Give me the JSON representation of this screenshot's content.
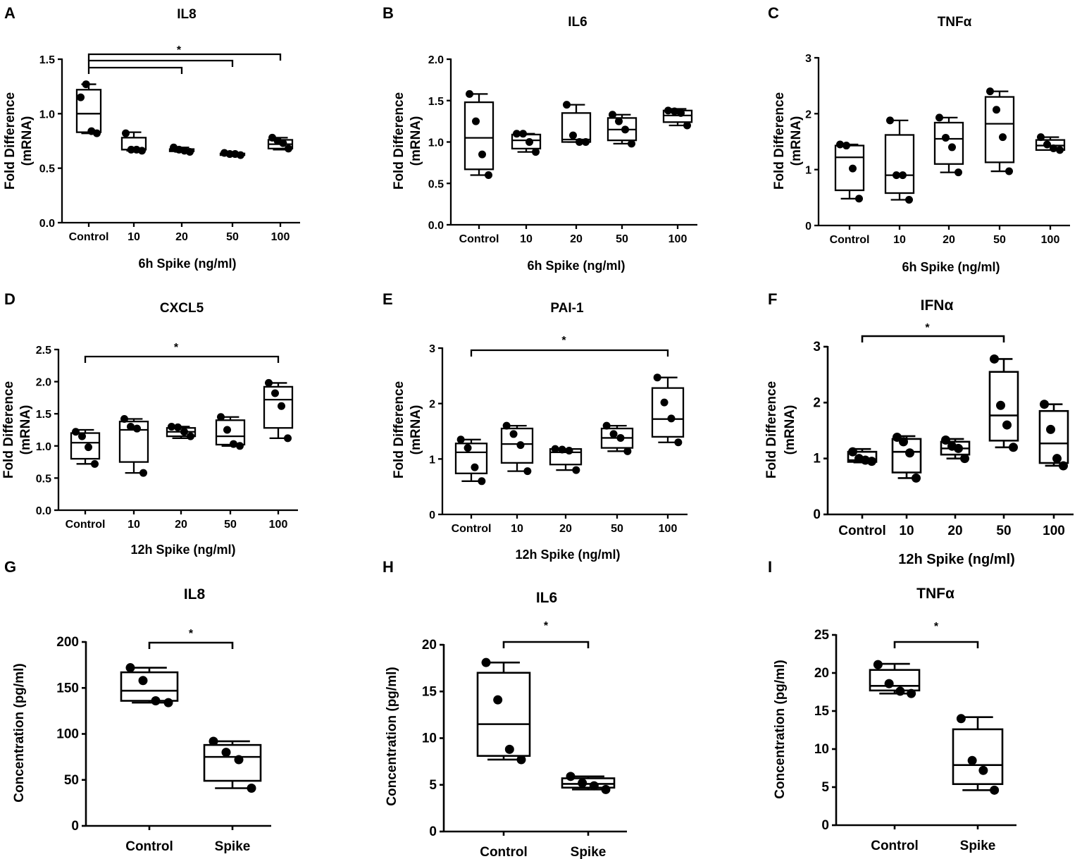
{
  "figure": {
    "colors": {
      "stroke": "#000000",
      "background": "#ffffff"
    }
  },
  "chart_data": [
    {
      "id": "A",
      "panel_label": "A",
      "type": "box",
      "title": "IL8",
      "xlabel": "6h Spike (ng/ml)",
      "ylabel": [
        "Fold Difference",
        "(mRNA)"
      ],
      "categories": [
        "Control",
        "10",
        "20",
        "50",
        "100"
      ],
      "ylim": [
        0,
        1.5
      ],
      "yticks": [
        0,
        0.5,
        1.0,
        1.5
      ],
      "ytick_labels": [
        "0.0",
        "0.5",
        "1.0",
        "1.5"
      ],
      "boxes": [
        {
          "min": 0.82,
          "q1": 0.83,
          "median": 1.0,
          "q3": 1.22,
          "max": 1.27
        },
        {
          "min": 0.66,
          "q1": 0.67,
          "median": 0.67,
          "q3": 0.78,
          "max": 0.83
        },
        {
          "min": 0.65,
          "q1": 0.655,
          "median": 0.665,
          "q3": 0.675,
          "max": 0.69
        },
        {
          "min": 0.62,
          "q1": 0.62,
          "median": 0.63,
          "q3": 0.635,
          "max": 0.64
        },
        {
          "min": 0.67,
          "q1": 0.68,
          "median": 0.72,
          "q3": 0.76,
          "max": 0.78
        }
      ],
      "points": [
        [
          1.15,
          1.27,
          0.84,
          0.82
        ],
        [
          0.82,
          0.67,
          0.67,
          0.66
        ],
        [
          0.69,
          0.67,
          0.66,
          0.65
        ],
        [
          0.64,
          0.63,
          0.63,
          0.62
        ],
        [
          0.78,
          0.75,
          0.73,
          0.68
        ]
      ],
      "significance": [
        {
          "from": 0,
          "to": 2,
          "label": ""
        },
        {
          "from": 0,
          "to": 3,
          "label": ""
        },
        {
          "from": 0,
          "to": 4,
          "label": "*"
        }
      ]
    },
    {
      "id": "B",
      "panel_label": "B",
      "type": "box",
      "title": "IL6",
      "xlabel": "6h Spike (ng/ml)",
      "ylabel": [
        "Fold Difference",
        "(mRNA)"
      ],
      "categories": [
        "Control",
        "10",
        "20",
        "50",
        "100"
      ],
      "ylim": [
        0,
        2.0
      ],
      "yticks": [
        0,
        0.5,
        1.0,
        1.5,
        2.0
      ],
      "ytick_labels": [
        "0.0",
        "0.5",
        "1.0",
        "1.5",
        "2.0"
      ],
      "boxes": [
        {
          "min": 0.6,
          "q1": 0.67,
          "median": 1.05,
          "q3": 1.48,
          "max": 1.58
        },
        {
          "min": 0.88,
          "q1": 0.92,
          "median": 1.02,
          "q3": 1.09,
          "max": 1.1
        },
        {
          "min": 1.0,
          "q1": 1.0,
          "median": 1.03,
          "q3": 1.35,
          "max": 1.45
        },
        {
          "min": 0.98,
          "q1": 1.02,
          "median": 1.15,
          "q3": 1.29,
          "max": 1.33
        },
        {
          "min": 1.2,
          "q1": 1.24,
          "median": 1.32,
          "q3": 1.38,
          "max": 1.4
        }
      ],
      "points": [
        [
          1.58,
          1.25,
          0.85,
          0.6
        ],
        [
          1.1,
          1.1,
          1.0,
          0.88
        ],
        [
          1.45,
          1.08,
          1.0,
          1.0
        ],
        [
          1.33,
          1.25,
          1.15,
          0.98
        ],
        [
          1.38,
          1.37,
          1.35,
          1.2
        ]
      ],
      "significance": []
    },
    {
      "id": "C",
      "panel_label": "C",
      "type": "box",
      "title": "TNFα",
      "xlabel": "6h Spike (ng/ml)",
      "ylabel": [
        "Fold Difference",
        "(mRNA)"
      ],
      "categories": [
        "Control",
        "10",
        "20",
        "50",
        "100"
      ],
      "ylim": [
        0,
        3
      ],
      "yticks": [
        0,
        1,
        2,
        3
      ],
      "ytick_labels": [
        "0",
        "1",
        "2",
        "3"
      ],
      "boxes": [
        {
          "min": 0.48,
          "q1": 0.63,
          "median": 1.22,
          "q3": 1.43,
          "max": 1.45
        },
        {
          "min": 0.46,
          "q1": 0.58,
          "median": 0.9,
          "q3": 1.62,
          "max": 1.88
        },
        {
          "min": 0.95,
          "q1": 1.1,
          "median": 1.55,
          "q3": 1.84,
          "max": 1.93
        },
        {
          "min": 0.97,
          "q1": 1.13,
          "median": 1.82,
          "q3": 2.3,
          "max": 2.4
        },
        {
          "min": 1.35,
          "q1": 1.35,
          "median": 1.43,
          "q3": 1.53,
          "max": 1.58
        }
      ],
      "points": [
        [
          1.45,
          1.43,
          1.02,
          0.48
        ],
        [
          1.88,
          0.9,
          0.9,
          0.46
        ],
        [
          1.93,
          1.57,
          1.4,
          0.95
        ],
        [
          2.4,
          2.07,
          1.58,
          0.97
        ],
        [
          1.58,
          1.45,
          1.38,
          1.35
        ]
      ],
      "significance": []
    },
    {
      "id": "D",
      "panel_label": "D",
      "type": "box",
      "title": "CXCL5",
      "xlabel": "12h Spike (ng/ml)",
      "ylabel": [
        "Fold Difference",
        "(mRNA)"
      ],
      "categories": [
        "Control",
        "10",
        "20",
        "50",
        "100"
      ],
      "ylim": [
        0,
        2.5
      ],
      "yticks": [
        0,
        0.5,
        1.0,
        1.5,
        2.0,
        2.5
      ],
      "ytick_labels": [
        "0.0",
        "0.5",
        "1.0",
        "1.5",
        "2.0",
        "2.5"
      ],
      "boxes": [
        {
          "min": 0.72,
          "q1": 0.8,
          "median": 1.05,
          "q3": 1.2,
          "max": 1.25
        },
        {
          "min": 0.58,
          "q1": 0.75,
          "median": 1.25,
          "q3": 1.38,
          "max": 1.42
        },
        {
          "min": 1.12,
          "q1": 1.15,
          "median": 1.22,
          "q3": 1.28,
          "max": 1.3
        },
        {
          "min": 1.0,
          "q1": 1.02,
          "median": 1.15,
          "q3": 1.4,
          "max": 1.45
        },
        {
          "min": 1.12,
          "q1": 1.28,
          "median": 1.72,
          "q3": 1.92,
          "max": 1.98
        }
      ],
      "points": [
        [
          1.22,
          1.15,
          0.98,
          0.72
        ],
        [
          1.42,
          1.3,
          1.27,
          0.58
        ],
        [
          1.3,
          1.29,
          1.22,
          1.15
        ],
        [
          1.45,
          1.25,
          1.03,
          1.0
        ],
        [
          1.98,
          1.82,
          1.62,
          1.12
        ]
      ],
      "significance": [
        {
          "from": 0,
          "to": 4,
          "label": "*"
        }
      ]
    },
    {
      "id": "E",
      "panel_label": "E",
      "type": "box",
      "title": "PAI-1",
      "xlabel": "12h Spike (ng/ml)",
      "ylabel": [
        "Fold Difference",
        "(mRNA)"
      ],
      "categories": [
        "Control",
        "10",
        "20",
        "50",
        "100"
      ],
      "ylim": [
        0,
        3
      ],
      "yticks": [
        0,
        1,
        2,
        3
      ],
      "ytick_labels": [
        "0",
        "1",
        "2",
        "3"
      ],
      "boxes": [
        {
          "min": 0.6,
          "q1": 0.74,
          "median": 1.12,
          "q3": 1.28,
          "max": 1.35
        },
        {
          "min": 0.78,
          "q1": 0.93,
          "median": 1.27,
          "q3": 1.55,
          "max": 1.6
        },
        {
          "min": 0.8,
          "q1": 0.9,
          "median": 1.12,
          "q3": 1.18,
          "max": 1.18
        },
        {
          "min": 1.14,
          "q1": 1.2,
          "median": 1.38,
          "q3": 1.55,
          "max": 1.6
        },
        {
          "min": 1.3,
          "q1": 1.4,
          "median": 1.72,
          "q3": 2.28,
          "max": 2.47
        }
      ],
      "points": [
        [
          1.35,
          1.2,
          0.85,
          0.6
        ],
        [
          1.6,
          1.45,
          1.25,
          0.78
        ],
        [
          1.18,
          1.17,
          1.15,
          0.8
        ],
        [
          1.6,
          1.45,
          1.38,
          1.14
        ],
        [
          2.47,
          2.02,
          1.73,
          1.3
        ]
      ],
      "significance": [
        {
          "from": 0,
          "to": 4,
          "label": "*"
        }
      ]
    },
    {
      "id": "F",
      "panel_label": "F",
      "type": "box",
      "title": "IFNα",
      "xlabel": "12h Spike (ng/ml)",
      "ylabel": [
        "Fold Difference",
        "(mRNA)"
      ],
      "categories": [
        "Control",
        "10",
        "20",
        "50",
        "100"
      ],
      "ylim": [
        0,
        3
      ],
      "yticks": [
        0,
        1,
        2,
        3
      ],
      "ytick_labels": [
        "0",
        "1",
        "2",
        "3"
      ],
      "boxes": [
        {
          "min": 0.93,
          "q1": 0.94,
          "median": 0.97,
          "q3": 1.12,
          "max": 1.17
        },
        {
          "min": 0.65,
          "q1": 0.75,
          "median": 1.12,
          "q3": 1.35,
          "max": 1.4
        },
        {
          "min": 1.0,
          "q1": 1.07,
          "median": 1.18,
          "q3": 1.3,
          "max": 1.35
        },
        {
          "min": 1.2,
          "q1": 1.32,
          "median": 1.77,
          "q3": 2.55,
          "max": 2.78
        },
        {
          "min": 0.87,
          "q1": 0.92,
          "median": 1.27,
          "q3": 1.85,
          "max": 1.97
        }
      ],
      "points": [
        [
          1.12,
          1.0,
          0.97,
          0.95
        ],
        [
          1.38,
          1.3,
          1.1,
          0.65
        ],
        [
          1.33,
          1.22,
          1.18,
          1.0
        ],
        [
          2.78,
          1.95,
          1.6,
          1.2
        ],
        [
          1.97,
          1.52,
          1.0,
          0.87
        ]
      ],
      "significance": [
        {
          "from": 0,
          "to": 3,
          "label": "*"
        }
      ]
    },
    {
      "id": "G",
      "panel_label": "G",
      "type": "box",
      "title": "IL8",
      "xlabel": "",
      "ylabel": [
        "Concentration (pg/ml)"
      ],
      "categories": [
        "Control",
        "Spike"
      ],
      "ylim": [
        0,
        200
      ],
      "yticks": [
        0,
        50,
        100,
        150,
        200
      ],
      "ytick_labels": [
        "0",
        "50",
        "100",
        "150",
        "200"
      ],
      "boxes": [
        {
          "min": 134,
          "q1": 136,
          "median": 147,
          "q3": 167,
          "max": 172
        },
        {
          "min": 41,
          "q1": 49,
          "median": 75,
          "q3": 88,
          "max": 92
        }
      ],
      "points": [
        [
          172,
          158,
          136,
          134
        ],
        [
          92,
          80,
          72,
          41
        ]
      ],
      "significance": [
        {
          "from": 0,
          "to": 1,
          "label": "*"
        }
      ]
    },
    {
      "id": "H",
      "panel_label": "H",
      "type": "box",
      "title": "IL6",
      "xlabel": "",
      "ylabel": [
        "Concentration (pg/ml)"
      ],
      "categories": [
        "Control",
        "Spike"
      ],
      "ylim": [
        0,
        20
      ],
      "yticks": [
        0,
        5,
        10,
        15,
        20
      ],
      "ytick_labels": [
        "0",
        "5",
        "10",
        "15",
        "20"
      ],
      "boxes": [
        {
          "min": 7.7,
          "q1": 8.1,
          "median": 11.5,
          "q3": 17.0,
          "max": 18.1
        },
        {
          "min": 4.5,
          "q1": 4.7,
          "median": 5.1,
          "q3": 5.7,
          "max": 5.9
        }
      ],
      "points": [
        [
          18.1,
          14.1,
          8.8,
          7.7
        ],
        [
          5.9,
          5.2,
          4.9,
          4.5
        ]
      ],
      "significance": [
        {
          "from": 0,
          "to": 1,
          "label": "*"
        }
      ]
    },
    {
      "id": "I",
      "panel_label": "I",
      "type": "box",
      "title": "TNFα",
      "xlabel": "",
      "ylabel": [
        "Concentration (pg/ml)"
      ],
      "categories": [
        "Control",
        "Spike"
      ],
      "ylim": [
        0,
        25
      ],
      "yticks": [
        0,
        5,
        10,
        15,
        20,
        25
      ],
      "ytick_labels": [
        "0",
        "5",
        "10",
        "15",
        "20",
        "25"
      ],
      "boxes": [
        {
          "min": 17.3,
          "q1": 17.7,
          "median": 18.3,
          "q3": 20.4,
          "max": 21.2
        },
        {
          "min": 4.6,
          "q1": 5.4,
          "median": 7.9,
          "q3": 12.6,
          "max": 14.2
        }
      ],
      "points": [
        [
          21.1,
          18.6,
          17.6,
          17.3
        ],
        [
          14.0,
          8.5,
          7.2,
          4.6
        ]
      ],
      "significance": [
        {
          "from": 0,
          "to": 1,
          "label": "*"
        }
      ]
    }
  ]
}
